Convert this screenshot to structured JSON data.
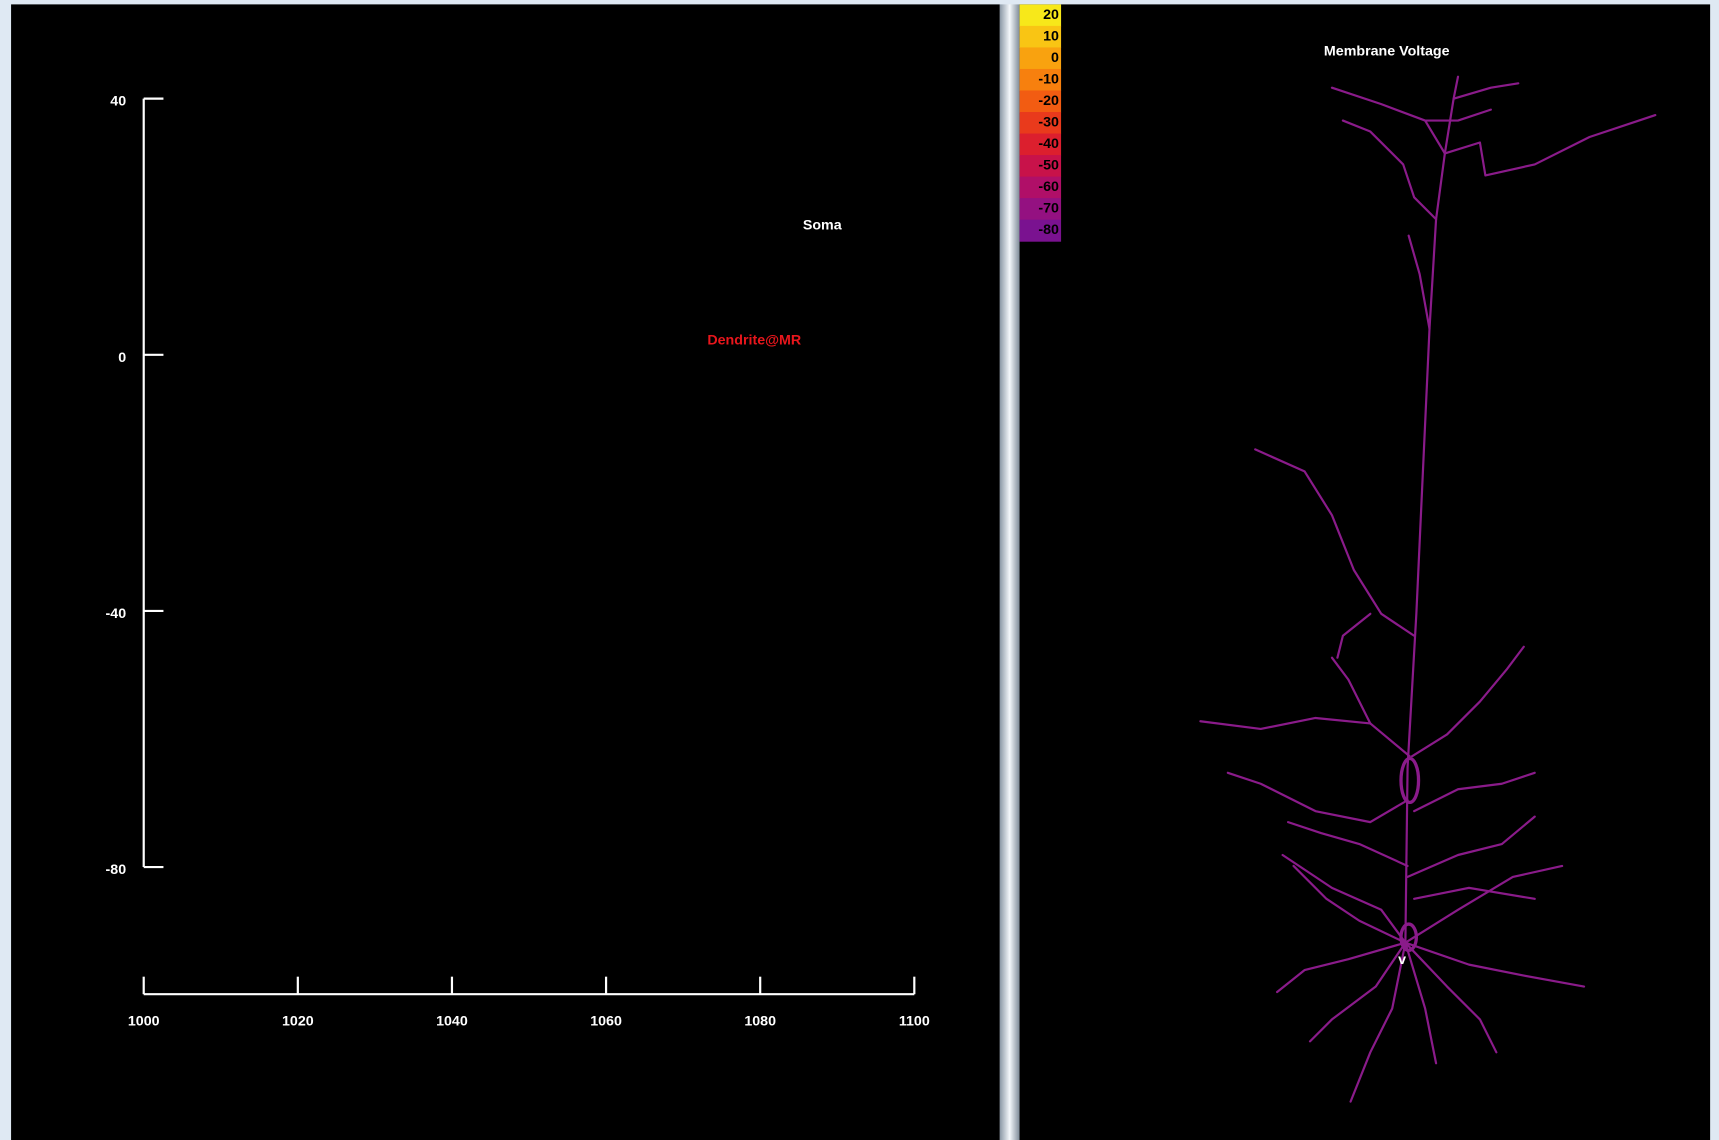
{
  "left_plot": {
    "xlim": [
      1000,
      1100
    ],
    "xticks": [
      1000,
      1020,
      1040,
      1060,
      1080,
      1100
    ],
    "ylim": [
      -80,
      40
    ],
    "yticks": [
      40,
      0,
      -40,
      -80
    ],
    "legend": [
      {
        "name": "Soma",
        "color": "#ffffff"
      },
      {
        "name": "Dendrite@MR",
        "color": "#e8161c"
      }
    ]
  },
  "right_panel": {
    "title": "Membrane Voltage",
    "colorbar": {
      "labels": [
        20,
        10,
        0,
        -10,
        -20,
        -30,
        -40,
        -50,
        -60,
        -70,
        -80
      ],
      "colors": [
        "#f7e81a",
        "#f9c514",
        "#f9a20f",
        "#f7800e",
        "#f25c12",
        "#e93a1c",
        "#dc1f2e",
        "#c8124a",
        "#b00f68",
        "#941181",
        "#7a1290"
      ]
    },
    "neuron_color": "#8a1b8a"
  }
}
